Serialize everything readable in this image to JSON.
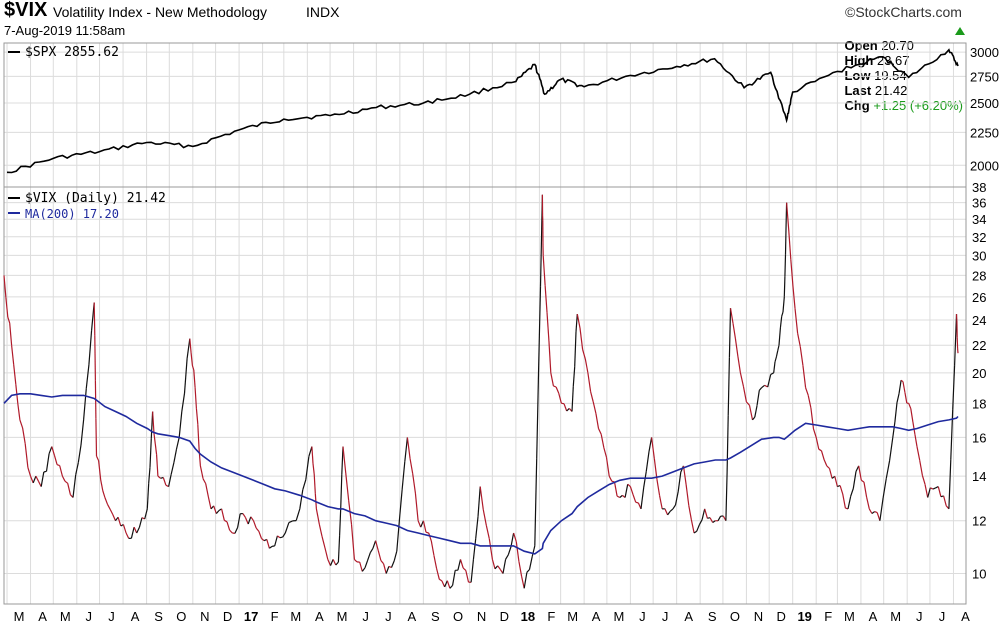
{
  "header": {
    "symbol": "$VIX",
    "description": "Volatility Index - New Methodology",
    "exchange": "INDX",
    "timestamp": "7-Aug-2019 11:58am",
    "brand": "©StockCharts.com",
    "open_label": "Open",
    "open_value": "20.70",
    "high_label": "High",
    "high_value": "23.67",
    "low_label": "Low",
    "low_value": "19.54",
    "last_label": "Last",
    "last_value": "21.42",
    "chg_label": "Chg",
    "chg_value": "+1.25 (+6.20%)",
    "chg_color": "#1a9a1a"
  },
  "top_panel": {
    "legend": "$SPX 2855.62",
    "y_ticks": [
      "3000",
      "2750",
      "2500",
      "2250",
      "2000"
    ],
    "line_color": "#000000"
  },
  "bottom_panel": {
    "legend_vix": "$VIX (Daily) 21.42",
    "legend_ma": "MA(200) 17.20",
    "ma_color": "#1f2a9e",
    "up_color": "#111111",
    "down_color": "#b01a2a",
    "y_ticks": [
      "38",
      "36",
      "34",
      "32",
      "30",
      "28",
      "26",
      "24",
      "22",
      "20",
      "18",
      "16",
      "14",
      "12",
      "10"
    ]
  },
  "x_axis": {
    "labels": [
      "M",
      "A",
      "M",
      "J",
      "J",
      "A",
      "S",
      "O",
      "N",
      "D",
      "17",
      "F",
      "M",
      "A",
      "M",
      "J",
      "J",
      "A",
      "S",
      "O",
      "N",
      "D",
      "18",
      "F",
      "M",
      "A",
      "M",
      "J",
      "J",
      "A",
      "S",
      "O",
      "N",
      "D",
      "19",
      "F",
      "M",
      "A",
      "M",
      "J",
      "J",
      "A"
    ]
  },
  "chart_data": [
    {
      "type": "line",
      "title": "$SPX 2855.62",
      "x": [
        "2016-03",
        "2016-05",
        "2016-07",
        "2016-09",
        "2016-11",
        "2017-01",
        "2017-03",
        "2017-05",
        "2017-07",
        "2017-09",
        "2017-11",
        "2018-01",
        "2018-01-26",
        "2018-02-08",
        "2018-03",
        "2018-04",
        "2018-06",
        "2018-08",
        "2018-09-20",
        "2018-10-29",
        "2018-12-03",
        "2018-12-24",
        "2019-01",
        "2019-03",
        "2019-04-30",
        "2019-06-03",
        "2019-07-26",
        "2019-08-07"
      ],
      "series": [
        {
          "name": "$SPX",
          "values": [
            1950,
            2050,
            2100,
            2170,
            2140,
            2270,
            2360,
            2390,
            2460,
            2500,
            2580,
            2700,
            2870,
            2580,
            2720,
            2650,
            2760,
            2850,
            2930,
            2640,
            2790,
            2350,
            2600,
            2800,
            2950,
            2740,
            3025,
            2855
          ]
        }
      ],
      "ylim": [
        1850,
        3100
      ],
      "y_scale": "log",
      "grid": true
    },
    {
      "type": "line",
      "title": "$VIX (Daily) 21.42",
      "x": [
        "2016-02-26",
        "2016-03-07",
        "2016-03-18",
        "2016-04-01",
        "2016-04-15",
        "2016-04-29",
        "2016-05-13",
        "2016-05-27",
        "2016-06-10",
        "2016-06-24",
        "2016-06-27",
        "2016-07-08",
        "2016-07-22",
        "2016-08-05",
        "2016-08-19",
        "2016-09-02",
        "2016-09-09",
        "2016-09-16",
        "2016-09-30",
        "2016-10-14",
        "2016-10-28",
        "2016-11-04",
        "2016-11-11",
        "2016-11-25",
        "2016-12-09",
        "2016-12-23",
        "2017-01-06",
        "2017-01-20",
        "2017-02-03",
        "2017-02-17",
        "2017-03-03",
        "2017-03-22",
        "2017-04-07",
        "2017-04-13",
        "2017-04-28",
        "2017-05-12",
        "2017-05-18",
        "2017-06-02",
        "2017-06-16",
        "2017-06-30",
        "2017-07-14",
        "2017-07-28",
        "2017-08-11",
        "2017-08-25",
        "2017-09-08",
        "2017-09-22",
        "2017-10-06",
        "2017-10-20",
        "2017-11-03",
        "2017-11-15",
        "2017-12-01",
        "2017-12-15",
        "2017-12-29",
        "2018-01-12",
        "2018-01-26",
        "2018-02-05",
        "2018-02-06",
        "2018-02-16",
        "2018-03-02",
        "2018-03-16",
        "2018-03-23",
        "2018-04-06",
        "2018-04-20",
        "2018-05-04",
        "2018-05-18",
        "2018-06-01",
        "2018-06-15",
        "2018-06-29",
        "2018-07-13",
        "2018-07-27",
        "2018-08-10",
        "2018-08-24",
        "2018-09-07",
        "2018-09-21",
        "2018-10-05",
        "2018-10-11",
        "2018-10-24",
        "2018-11-09",
        "2018-11-21",
        "2018-12-07",
        "2018-12-14",
        "2018-12-21",
        "2018-12-24",
        "2019-01-04",
        "2019-01-18",
        "2019-02-01",
        "2019-02-15",
        "2019-03-01",
        "2019-03-15",
        "2019-03-29",
        "2019-04-12",
        "2019-04-26",
        "2019-05-13",
        "2019-05-24",
        "2019-06-03",
        "2019-06-14",
        "2019-06-28",
        "2019-07-12",
        "2019-07-26",
        "2019-08-05",
        "2019-08-07"
      ],
      "series": [
        {
          "name": "$VIX",
          "values": [
            28,
            22,
            17,
            14,
            13.5,
            15.5,
            14,
            13,
            17,
            25.5,
            15,
            13,
            12,
            11.5,
            11.5,
            12.5,
            17.5,
            14,
            13.5,
            16,
            22.5,
            19,
            14.5,
            12.5,
            12.5,
            11.5,
            12.3,
            12,
            11.2,
            11,
            11.5,
            12.5,
            15.5,
            12.5,
            10.5,
            10.4,
            15.5,
            10.5,
            10.2,
            11.2,
            10,
            10.8,
            16,
            12,
            11.5,
            9.8,
            9.5,
            10.5,
            9.7,
            13.5,
            10.5,
            10,
            11.5,
            9.5,
            11,
            37,
            30,
            20,
            18,
            17.5,
            24.5,
            20,
            16.5,
            14,
            13,
            13.5,
            12.5,
            16,
            12.5,
            12.5,
            14.5,
            11.5,
            12.5,
            12,
            12,
            25,
            20,
            17,
            19,
            20,
            22,
            26,
            36,
            25,
            19,
            16,
            14.5,
            13.5,
            12.5,
            14.5,
            12.5,
            12,
            16,
            19.5,
            18,
            15.5,
            13,
            13.5,
            12.5,
            24.5,
            21.4
          ]
        },
        {
          "name": "MA(200)",
          "values": [
            18,
            18.5,
            18.6,
            18.6,
            18.5,
            18.4,
            18.5,
            18.5,
            18.5,
            18.3,
            18.2,
            17.8,
            17.5,
            17.2,
            16.8,
            16.5,
            16.3,
            16.2,
            16.1,
            16,
            15.8,
            15.4,
            15.1,
            14.7,
            14.4,
            14.2,
            14,
            13.8,
            13.6,
            13.4,
            13.3,
            13.1,
            12.9,
            12.8,
            12.6,
            12.5,
            12.5,
            12.3,
            12.2,
            12,
            11.9,
            11.8,
            11.6,
            11.5,
            11.4,
            11.3,
            11.2,
            11.1,
            11.1,
            11,
            11,
            11,
            11,
            10.8,
            10.7,
            10.9,
            11.1,
            11.6,
            12,
            12.3,
            12.6,
            13,
            13.3,
            13.6,
            13.8,
            13.9,
            13.9,
            13.9,
            14,
            14.2,
            14.4,
            14.6,
            14.7,
            14.8,
            14.8,
            14.9,
            15.2,
            15.6,
            15.9,
            16,
            16,
            15.9,
            16,
            16.4,
            16.8,
            16.7,
            16.6,
            16.5,
            16.4,
            16.5,
            16.6,
            16.6,
            16.6,
            16.5,
            16.4,
            16.5,
            16.7,
            16.9,
            17,
            17.1,
            17.2
          ]
        }
      ],
      "ylim": [
        9,
        38
      ],
      "y_scale": "log",
      "grid": true
    }
  ]
}
